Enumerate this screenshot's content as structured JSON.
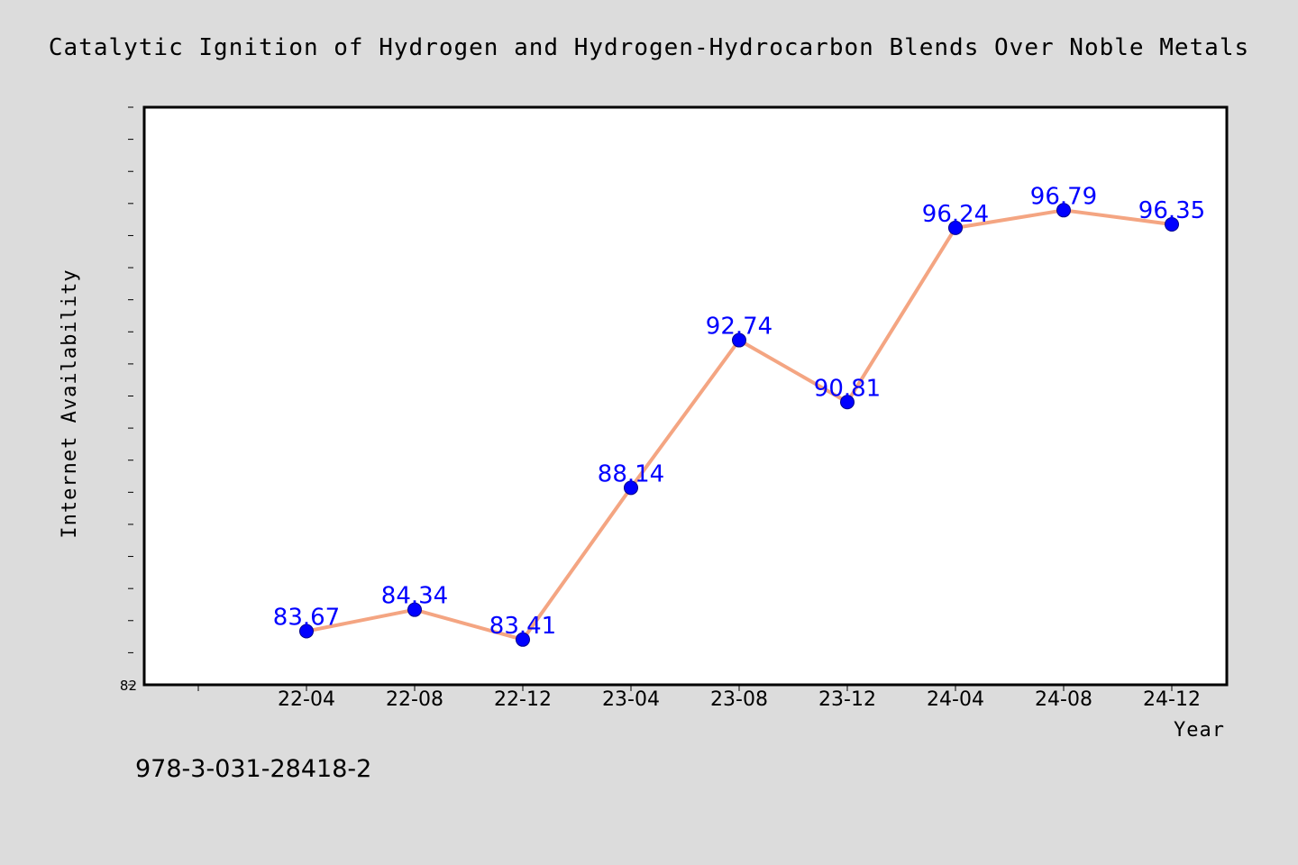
{
  "chart_data": {
    "type": "line",
    "title": "Catalytic Ignition of Hydrogen and Hydrogen-Hydrocarbon Blends Over Noble Metals",
    "xlabel": "Year",
    "ylabel": "Internet Availability",
    "categories": [
      "22-04",
      "22-08",
      "22-12",
      "23-04",
      "23-08",
      "23-12",
      "24-04",
      "24-08",
      "24-12"
    ],
    "series": [
      {
        "values": [
          83.67,
          84.34,
          83.41,
          88.14,
          92.74,
          90.81,
          96.24,
          96.79,
          96.35
        ]
      }
    ],
    "data_labels": [
      "83.67",
      "84.34",
      "83.41",
      "88.14",
      "92.74",
      "90.81",
      "96.24",
      "96.79",
      "96.35"
    ],
    "ylim": [
      82,
      100
    ],
    "y_tick_labels": [
      "82"
    ],
    "grid": false,
    "colors": {
      "line": "#f4a582",
      "marker": "#0000ff",
      "label": "#0000ff",
      "background": "#dcdcdc",
      "plot": "#ffffff"
    }
  },
  "footnote": "978-3-031-28418-2"
}
